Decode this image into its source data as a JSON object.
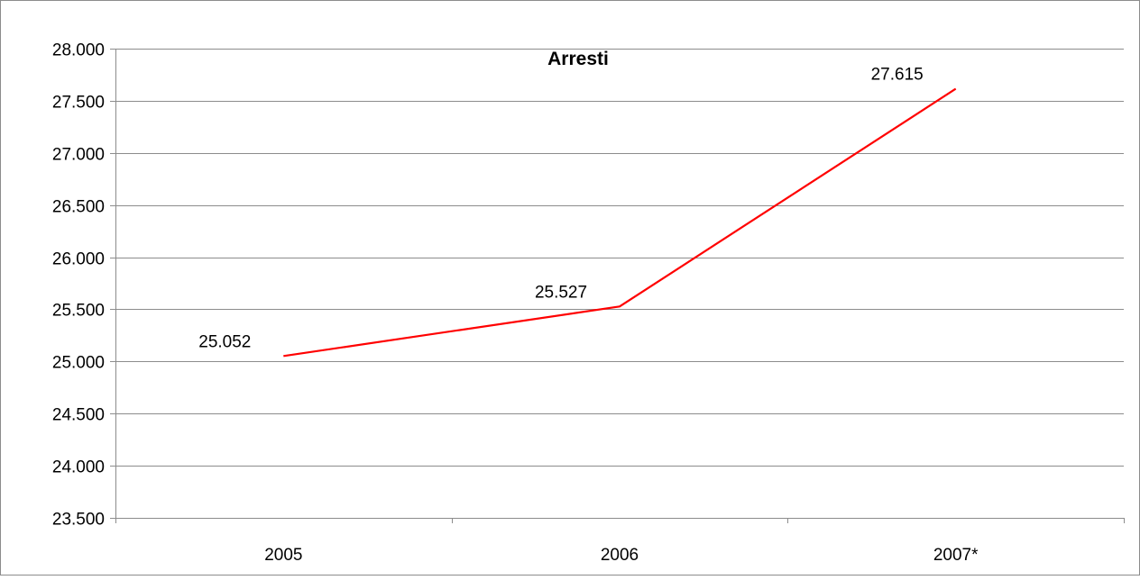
{
  "chart_data": {
    "type": "line",
    "title": "Arresti",
    "xlabel": "",
    "ylabel": "",
    "categories": [
      "2005",
      "2006",
      "2007*"
    ],
    "series": [
      {
        "values": [
          25052,
          25527,
          27615
        ],
        "data_labels": [
          "25.052",
          "25.527",
          "27.615"
        ],
        "color": "#ff0000"
      }
    ],
    "ylim": [
      23500,
      28000
    ],
    "y_step": 500,
    "y_tick_labels": [
      "23.500",
      "24.000",
      "24.500",
      "25.000",
      "25.500",
      "26.000",
      "26.500",
      "27.000",
      "27.500",
      "28.000"
    ],
    "grid": true,
    "legend": "none",
    "colors": {
      "border": "#8c8c8c",
      "gridline": "#8c8c8c",
      "axis": "#8c8c8c",
      "line": "#ff0000"
    }
  }
}
